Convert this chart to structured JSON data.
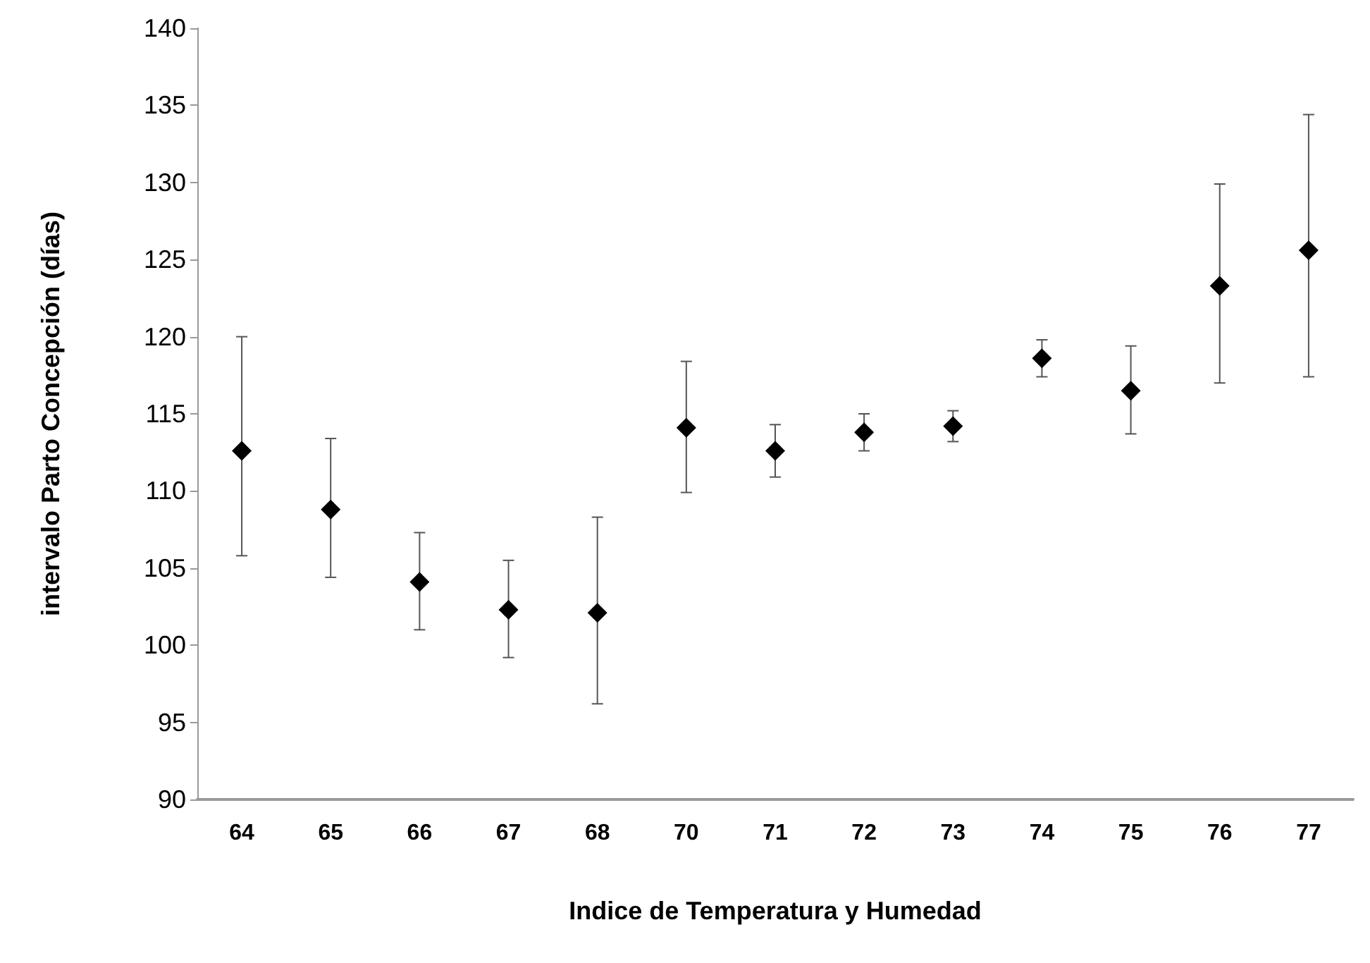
{
  "chart_data": {
    "type": "scatter",
    "xlabel": "Indice de Temperatura y Humedad",
    "ylabel": "intervalo Parto Concepción (días)",
    "categories": [
      "64",
      "65",
      "66",
      "67",
      "68",
      "70",
      "71",
      "72",
      "73",
      "74",
      "75",
      "76",
      "77"
    ],
    "values": [
      112.6,
      108.8,
      104.1,
      102.3,
      102.1,
      114.1,
      112.6,
      113.8,
      114.2,
      118.6,
      116.5,
      123.3,
      125.6
    ],
    "errors": [
      [
        105.8,
        120.0
      ],
      [
        104.4,
        113.4
      ],
      [
        101.0,
        107.3
      ],
      [
        99.2,
        105.5
      ],
      [
        96.2,
        108.3
      ],
      [
        109.9,
        118.4
      ],
      [
        110.9,
        114.3
      ],
      [
        112.6,
        115.0
      ],
      [
        113.2,
        115.2
      ],
      [
        117.4,
        119.8
      ],
      [
        113.7,
        119.4
      ],
      [
        117.0,
        129.9
      ],
      [
        117.4,
        134.4
      ]
    ],
    "color": "#000000",
    "marker": "diamond",
    "ylim": [
      90,
      140
    ],
    "yticks": [
      90,
      95,
      100,
      105,
      110,
      115,
      120,
      125,
      130,
      135,
      140
    ],
    "grid": false
  }
}
